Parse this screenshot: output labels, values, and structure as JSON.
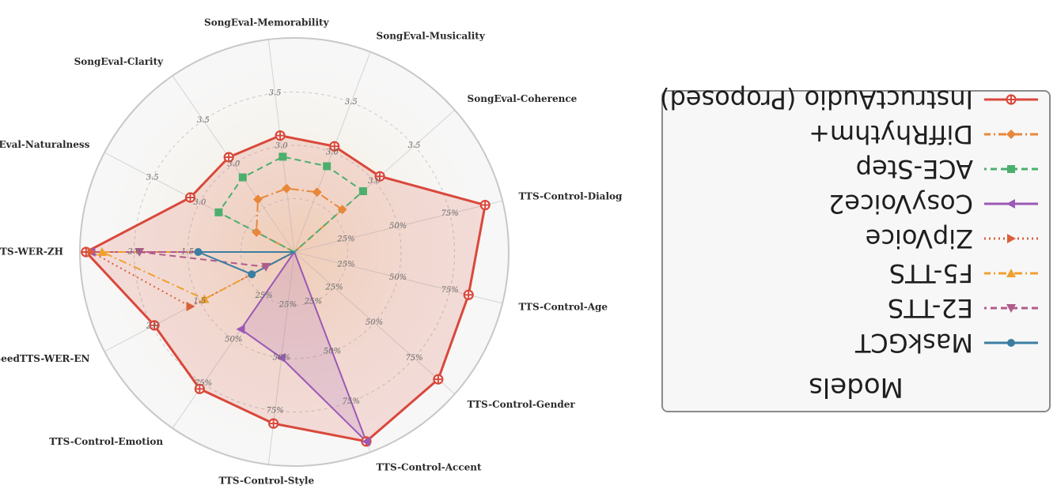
{
  "chart_data": {
    "type": "radar",
    "orientation": "rotated 180 degrees",
    "axes": [
      {
        "name": "SeedTTS-WER-ZH",
        "ticks": [
          "1.5",
          "2.0"
        ],
        "range": [
          3.0,
          1.0
        ]
      },
      {
        "name": "SongEval-Naturalness",
        "ticks": [
          "3.0",
          "3.5"
        ],
        "range": [
          2.0,
          4.0
        ]
      },
      {
        "name": "SongEval-Clarity",
        "ticks": [
          "3.0",
          "3.5"
        ],
        "range": [
          2.0,
          4.0
        ]
      },
      {
        "name": "SongEval-Memorability",
        "ticks": [
          "3.0",
          "3.5"
        ],
        "range": [
          2.0,
          4.0
        ]
      },
      {
        "name": "SongEval-Musicality",
        "ticks": [
          "3.0",
          "3.5"
        ],
        "range": [
          2.0,
          4.0
        ]
      },
      {
        "name": "SongEval-Coherence",
        "ticks": [
          "3.0",
          "3.5"
        ],
        "range": [
          2.0,
          4.0
        ]
      },
      {
        "name": "TTS-Control-Dialog",
        "ticks": [
          "25%",
          "50%",
          "75%"
        ],
        "range": [
          0,
          100
        ]
      },
      {
        "name": "TTS-Control-Age",
        "ticks": [
          "25%",
          "50%",
          "75%"
        ],
        "range": [
          0,
          100
        ]
      },
      {
        "name": "TTS-Control-Gender",
        "ticks": [
          "25%",
          "50%",
          "75%"
        ],
        "range": [
          0,
          100
        ]
      },
      {
        "name": "TTS-Control-Accent",
        "ticks": [
          "25%",
          "50%",
          "75%"
        ],
        "range": [
          0,
          100
        ]
      },
      {
        "name": "TTS-Control-Style",
        "ticks": [
          "25%",
          "50%",
          "75%"
        ],
        "range": [
          0,
          100
        ]
      },
      {
        "name": "TTS-Control-Emotion",
        "ticks": [
          "25%",
          "50%",
          "75%"
        ],
        "range": [
          0,
          100
        ]
      },
      {
        "name": "SeedTTS-WER-EN",
        "ticks": [
          "1.5",
          "2.0"
        ],
        "range": [
          3.0,
          1.0
        ]
      }
    ],
    "series": [
      {
        "name": "InstructAudio (Proposed)",
        "color": "#d9483b",
        "dash": "solid",
        "marker": "cross-star",
        "fill": true,
        "values": [
          1.05,
          3.1,
          3.08,
          3.1,
          3.06,
          3.07,
          92,
          84,
          90,
          95,
          81,
          78,
          1.52
        ]
      },
      {
        "name": "DiffRhythm+",
        "color": "#e8873a",
        "dash": "dashdot",
        "marker": "diamond",
        "fill": false,
        "values": [
          null,
          2.4,
          2.6,
          2.6,
          2.6,
          2.6,
          null,
          null,
          null,
          null,
          null,
          null,
          null
        ]
      },
      {
        "name": "ACE-Step",
        "color": "#4caf6e",
        "dash": "dashed",
        "marker": "square",
        "fill": false,
        "values": [
          null,
          2.8,
          2.85,
          2.9,
          2.86,
          2.86,
          null,
          null,
          null,
          null,
          null,
          null,
          null
        ]
      },
      {
        "name": "CosyVoice2",
        "color": "#9b59b6",
        "dash": "solid",
        "marker": "triangle-right",
        "fill": true,
        "values": [
          1.1,
          null,
          null,
          null,
          null,
          null,
          null,
          null,
          null,
          95,
          50,
          44,
          null
        ]
      },
      {
        "name": "ZipVoice",
        "color": "#d9603b",
        "dash": "dotted",
        "marker": "triangle-left",
        "fill": false,
        "values": [
          1.1,
          null,
          null,
          null,
          null,
          null,
          null,
          null,
          null,
          null,
          null,
          null,
          1.9
        ]
      },
      {
        "name": "F5-TTS",
        "color": "#f0a030",
        "dash": "dashdot",
        "marker": "triangle-down",
        "fill": false,
        "values": [
          1.2,
          null,
          null,
          null,
          null,
          null,
          null,
          null,
          null,
          null,
          null,
          null,
          2.05
        ]
      },
      {
        "name": "E2-TTS",
        "color": "#b05c8a",
        "dash": "dashed",
        "marker": "triangle-up",
        "fill": false,
        "values": [
          1.55,
          null,
          null,
          null,
          null,
          null,
          null,
          null,
          null,
          null,
          null,
          null,
          2.7
        ]
      },
      {
        "name": "MaskGCT",
        "color": "#3b7ea1",
        "dash": "solid",
        "marker": "circle",
        "fill": false,
        "values": [
          2.1,
          null,
          null,
          null,
          null,
          null,
          null,
          null,
          null,
          null,
          null,
          null,
          2.55
        ]
      }
    ],
    "legend": {
      "title": "Models",
      "placement": "right"
    }
  }
}
